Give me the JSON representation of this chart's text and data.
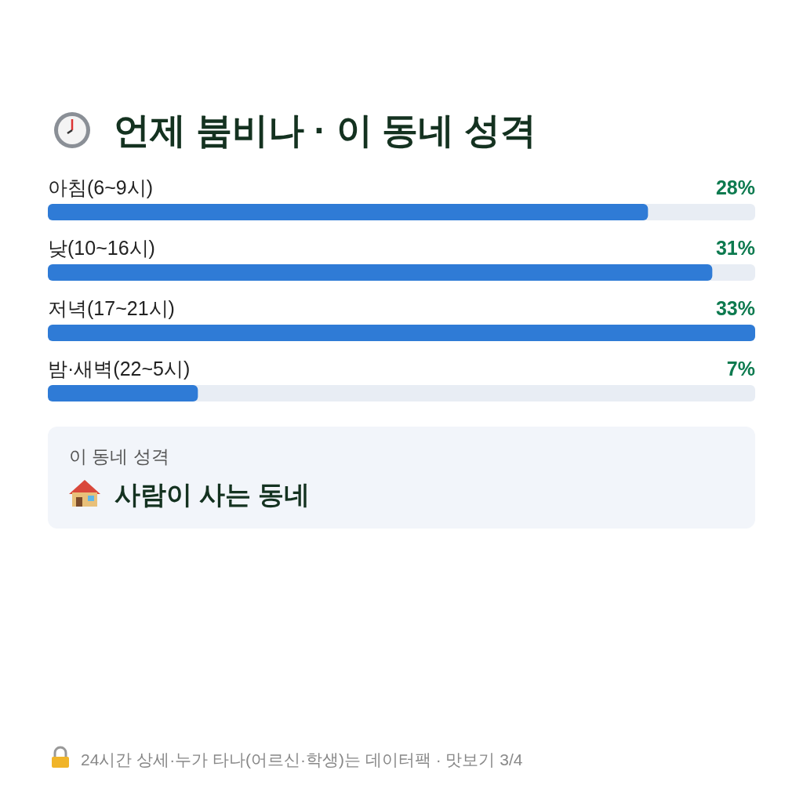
{
  "chart_data": {
    "type": "bar",
    "orientation": "horizontal",
    "title": "언제 붐비나 · 이 동네 성격",
    "categories": [
      "아침(6~9시)",
      "낮(10~16시)",
      "저녁(17~21시)",
      "밤·새벽(22~5시)"
    ],
    "values": [
      28,
      31,
      33,
      7
    ],
    "value_labels": [
      "28%",
      "31%",
      "33%",
      "7%"
    ],
    "color": "#2f7bd6",
    "annotations": [
      "이 동네 성격",
      "사람이 사는 동네",
      "24시간 상세·누가 타나(어르신·학생)는 데이터팩 · 맛보기 3/4"
    ]
  }
}
